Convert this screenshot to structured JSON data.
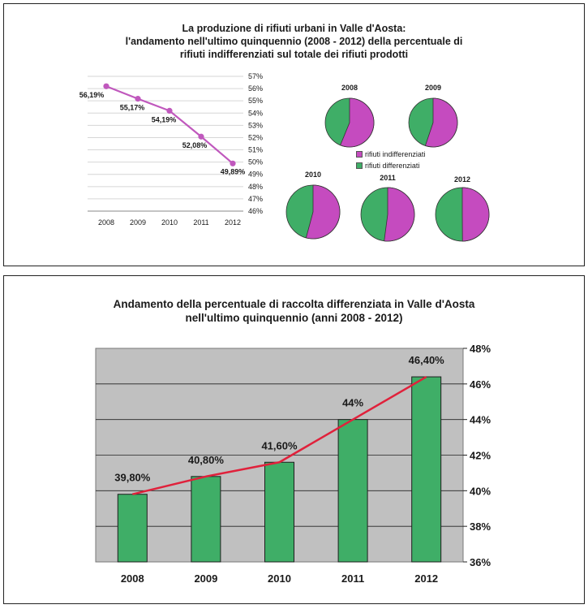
{
  "top_title": [
    "La produzione di rifiuti urbani in Valle d'Aosta:",
    "l'andamento nell'ultimo quinquennio (2008 - 2012) della percentuale di",
    "rifiuti indifferenziati sul totale dei rifiuti prodotti"
  ],
  "bottom_title": [
    "Andamento della percentuale di raccolta differenziata in Valle d'Aosta",
    "nell'ultimo quinquennio (anni 2008 - 2012)"
  ],
  "legend": {
    "indifferenziati": "rifiuti indifferenziati",
    "differenziati": "rifiuti differenziati"
  },
  "colors": {
    "magenta": "#c54bbf",
    "green": "#3fae67",
    "line_magenta": "#c058bd",
    "line_red": "#e0213b",
    "plot_gray": "#c0c0c0"
  },
  "chart_data": [
    {
      "type": "line",
      "x": [
        "2008",
        "2009",
        "2010",
        "2011",
        "2012"
      ],
      "y": [
        56.19,
        55.17,
        54.19,
        52.08,
        49.89
      ],
      "data_labels": [
        "56,19%",
        "55,17%",
        "54,19%",
        "52,08%",
        "49,89%"
      ],
      "ylim": [
        46,
        57
      ],
      "yticks": [
        "46%",
        "47%",
        "48%",
        "49%",
        "50%",
        "51%",
        "52%",
        "53%",
        "54%",
        "55%",
        "56%",
        "57%"
      ],
      "y_axis_side": "right",
      "grid": true
    },
    {
      "type": "pie",
      "pies": [
        {
          "label": "2008",
          "values": [
            56.19,
            43.81
          ]
        },
        {
          "label": "2009",
          "values": [
            55.17,
            44.83
          ]
        },
        {
          "label": "2010",
          "values": [
            54.19,
            45.81
          ]
        },
        {
          "label": "2011",
          "values": [
            52.08,
            47.92
          ]
        },
        {
          "label": "2012",
          "values": [
            49.89,
            50.11
          ]
        }
      ],
      "slices": [
        "rifiuti indifferenziati",
        "rifiuti differenziati"
      ]
    },
    {
      "type": "bar",
      "categories": [
        "2008",
        "2009",
        "2010",
        "2011",
        "2012"
      ],
      "values": [
        39.8,
        40.8,
        41.6,
        44.0,
        46.4
      ],
      "data_labels": [
        "39,80%",
        "40,80%",
        "41,60%",
        "44%",
        "46,40%"
      ],
      "line_overlay": true,
      "ylim": [
        36,
        48
      ],
      "yticks": [
        "36%",
        "38%",
        "40%",
        "42%",
        "44%",
        "46%",
        "48%"
      ],
      "y_axis_side": "right",
      "grid": true
    }
  ]
}
